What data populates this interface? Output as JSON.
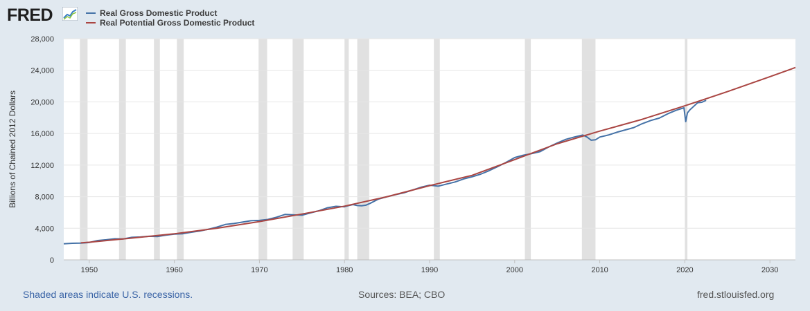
{
  "header": {
    "logo_text": "FRED",
    "logo_icon": "fred-chart-icon"
  },
  "legend": [
    {
      "label": "Real Gross Domestic Product",
      "color": "#4572a7"
    },
    {
      "label": "Real Potential Gross Domestic Product",
      "color": "#aa4643"
    }
  ],
  "footer": {
    "note": "Shaded areas indicate U.S. recessions.",
    "sources": "Sources: BEA; CBO",
    "url": "fred.stlouisfed.org"
  },
  "chart_data": {
    "type": "line",
    "title": "",
    "xlabel": "",
    "ylabel": "Billions of Chained 2012 Dollars",
    "xlim": [
      1947,
      2033
    ],
    "ylim": [
      0,
      28000
    ],
    "yticks": [
      0,
      4000,
      8000,
      12000,
      16000,
      20000,
      24000,
      28000
    ],
    "ytick_labels": [
      "0",
      "4,000",
      "8,000",
      "12,000",
      "16,000",
      "20,000",
      "24,000",
      "28,000"
    ],
    "xticks": [
      1950,
      1960,
      1970,
      1980,
      1990,
      2000,
      2010,
      2020,
      2030
    ],
    "xtick_labels": [
      "1950",
      "1960",
      "1970",
      "1980",
      "1990",
      "2000",
      "2010",
      "2020",
      "2030"
    ],
    "grid": true,
    "recessions": [
      [
        1948.9,
        1949.8
      ],
      [
        1953.5,
        1954.3
      ],
      [
        1957.6,
        1958.3
      ],
      [
        1960.3,
        1961.1
      ],
      [
        1969.9,
        1970.9
      ],
      [
        1973.9,
        1975.2
      ],
      [
        1980.0,
        1980.5
      ],
      [
        1981.5,
        1982.9
      ],
      [
        1990.5,
        1991.2
      ],
      [
        2001.2,
        2001.9
      ],
      [
        2007.9,
        2009.5
      ],
      [
        2020.0,
        2020.3
      ]
    ],
    "series": [
      {
        "name": "Real Gross Domestic Product",
        "color": "#4572a7",
        "x": [
          1947,
          1948,
          1949,
          1950,
          1951,
          1952,
          1953,
          1954,
          1955,
          1956,
          1957,
          1958,
          1959,
          1960,
          1961,
          1962,
          1963,
          1964,
          1965,
          1966,
          1967,
          1968,
          1969,
          1970,
          1971,
          1972,
          1973,
          1974,
          1975,
          1976,
          1977,
          1978,
          1979,
          1980,
          1980.5,
          1981,
          1981.5,
          1982,
          1982.5,
          1983,
          1984,
          1985,
          1986,
          1987,
          1988,
          1989,
          1990,
          1990.5,
          1991,
          1992,
          1993,
          1994,
          1995,
          1996,
          1997,
          1998,
          1999,
          2000,
          2001,
          2002,
          2003,
          2004,
          2005,
          2006,
          2007,
          2008,
          2008.5,
          2009,
          2009.5,
          2010,
          2011,
          2012,
          2013,
          2014,
          2015,
          2016,
          2017,
          2018,
          2019,
          2019.9,
          2020.1,
          2020.3,
          2020.6,
          2021,
          2021.5,
          2022,
          2022.5
        ],
        "values": [
          2030,
          2100,
          2120,
          2200,
          2450,
          2550,
          2670,
          2650,
          2850,
          2900,
          2980,
          2950,
          3120,
          3260,
          3310,
          3500,
          3650,
          3880,
          4150,
          4480,
          4600,
          4780,
          4950,
          5000,
          5120,
          5400,
          5750,
          5700,
          5650,
          5950,
          6220,
          6600,
          6780,
          6720,
          6880,
          7000,
          6880,
          6850,
          6920,
          7150,
          7700,
          8000,
          8250,
          8500,
          8850,
          9200,
          9450,
          9400,
          9330,
          9600,
          9860,
          10250,
          10520,
          10850,
          11300,
          11800,
          12350,
          12950,
          13250,
          13450,
          13700,
          14300,
          14800,
          15250,
          15550,
          15800,
          15550,
          15150,
          15200,
          15550,
          15800,
          16150,
          16450,
          16750,
          17250,
          17650,
          17950,
          18500,
          18950,
          19250,
          17500,
          18600,
          19000,
          19400,
          19900,
          19950,
          20200
        ]
      },
      {
        "name": "Real Potential Gross Domestic Product",
        "color": "#aa4643",
        "x": [
          1949,
          1950,
          1955,
          1960,
          1965,
          1970,
          1975,
          1980,
          1985,
          1990,
          1995,
          2000,
          2005,
          2010,
          2015,
          2020,
          2025,
          2030,
          2033
        ],
        "values": [
          2150,
          2230,
          2760,
          3300,
          4000,
          4850,
          5800,
          6800,
          8000,
          9400,
          10700,
          12700,
          14700,
          16300,
          17800,
          19500,
          21300,
          23200,
          24350
        ]
      }
    ]
  }
}
